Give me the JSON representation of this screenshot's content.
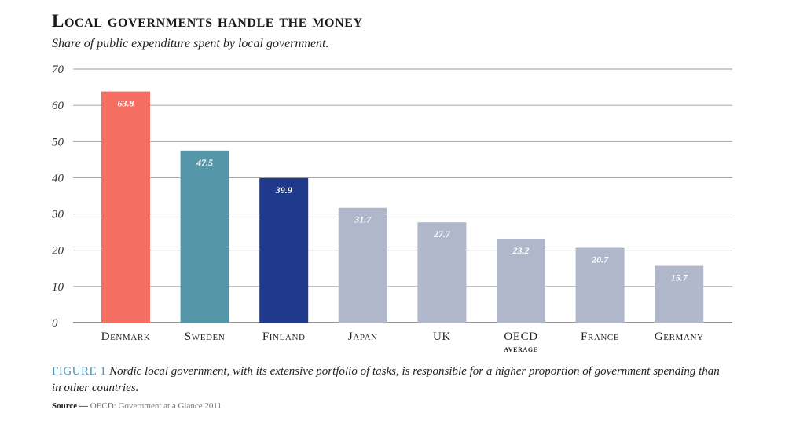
{
  "header": {
    "title": "Local governments handle the money",
    "subtitle": "Share of public expenditure spent by local government."
  },
  "caption": {
    "figure_label": "FIGURE 1",
    "text": "Nordic local government, with its extensive portfolio of tasks, is responsible for a higher proportion of government spending than in other countries."
  },
  "source": {
    "label": "Source —",
    "text": "OECD: Government at a Glance 2011"
  },
  "chart_data": {
    "type": "bar",
    "title": "Local governments handle the money",
    "subtitle": "Share of public expenditure spent by local government.",
    "categories": [
      "Denmark",
      "Sweden",
      "Finland",
      "Japan",
      "UK",
      "OECD average",
      "France",
      "Germany"
    ],
    "category_labels": [
      [
        "Denmark"
      ],
      [
        "Sweden"
      ],
      [
        "Finland"
      ],
      [
        "Japan"
      ],
      [
        "UK"
      ],
      [
        "OECD",
        "average"
      ],
      [
        "France"
      ],
      [
        "Germany"
      ]
    ],
    "values": [
      63.8,
      47.5,
      39.9,
      31.7,
      27.7,
      23.2,
      20.7,
      15.7
    ],
    "data_labels": [
      "63.8",
      "47.5",
      "39.9",
      "31.7",
      "27.7",
      "23.2",
      "20.7",
      "15.7"
    ],
    "colors": [
      "#f46f62",
      "#5596a9",
      "#1f3a8a",
      "#b0b7cb",
      "#b0b7cb",
      "#b0b7cb",
      "#b0b7cb",
      "#b0b7cb"
    ],
    "ylim": [
      0,
      70
    ],
    "yticks": [
      0,
      10,
      20,
      30,
      40,
      50,
      60,
      70
    ],
    "xlabel": "",
    "ylabel": "",
    "grid": true,
    "legend": "none"
  }
}
